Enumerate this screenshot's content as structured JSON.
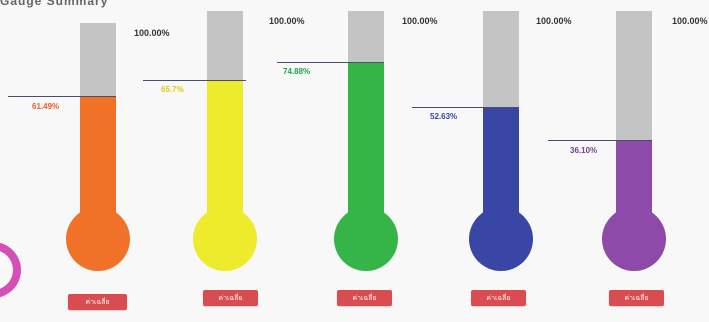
{
  "header": {
    "cut_text": "Gauge Summary"
  },
  "gauges": [
    {
      "max_label": "100.00%",
      "value": 61.49,
      "value_label": "61.49%",
      "color": "#f07229",
      "label_color": "#f05a2a",
      "button_label": "ค่าเฉลี่ย"
    },
    {
      "max_label": "100.00%",
      "value": 65.7,
      "value_label": "65.7%",
      "color": "#eeea2c",
      "label_color": "#d6cf19",
      "button_label": "ค่าเฉลี่ย"
    },
    {
      "max_label": "100.00%",
      "value": 74.88,
      "value_label": "74.88%",
      "color": "#35b548",
      "label_color": "#24a543",
      "button_label": "ค่าเฉลี่ย"
    },
    {
      "max_label": "100.00%",
      "value": 52.63,
      "value_label": "52.63%",
      "color": "#3946a4",
      "label_color": "#34479d",
      "button_label": "ค่าเฉลี่ย"
    },
    {
      "max_label": "100.00%",
      "value": 36.1,
      "value_label": "36.10%",
      "color": "#8d4aa8",
      "label_color": "#71448e",
      "button_label": "ค่าเฉลี่ย"
    }
  ]
}
